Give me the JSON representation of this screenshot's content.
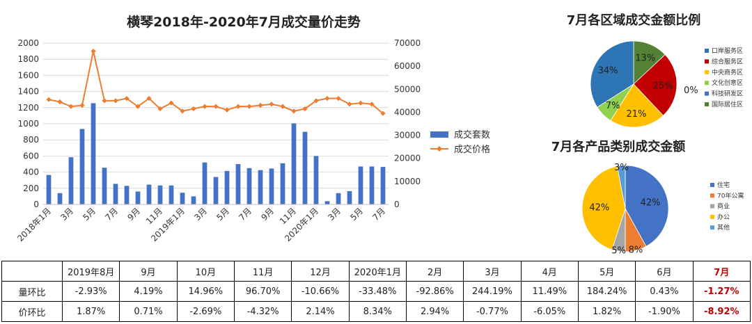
{
  "main_title": "横琴2018年-2020年7月成交量价走势",
  "region_title": "7月各区域成交金额比例",
  "product_title": "7月各产品类别成交金额",
  "chart_data": [
    {
      "type": "bar+line",
      "title": "横琴2018年-2020年7月成交量价走势",
      "categories": [
        "2018年1月",
        "2月",
        "3月",
        "4月",
        "5月",
        "6月",
        "7月",
        "8月",
        "9月",
        "10月",
        "11月",
        "12月",
        "2019年1月",
        "2月",
        "3月",
        "4月",
        "5月",
        "6月",
        "7月",
        "8月",
        "9月",
        "10月",
        "11月",
        "12月",
        "2020年1月",
        "2月",
        "3月",
        "4月",
        "5月",
        "6月",
        "7月"
      ],
      "x_tick_labels": [
        "2018年1月",
        "",
        "3月",
        "",
        "5月",
        "",
        "7月",
        "",
        "9月",
        "",
        "11月",
        "",
        "2019年1月",
        "",
        "3月",
        "",
        "5月",
        "",
        "7月",
        "",
        "9月",
        "",
        "11月",
        "",
        "2020年1月",
        "",
        "3月",
        "",
        "5月",
        "",
        "7月"
      ],
      "series": [
        {
          "name": "成交套数",
          "type": "bar",
          "axis": "left",
          "color": "#4472c4",
          "values": [
            365,
            140,
            585,
            935,
            1255,
            455,
            255,
            230,
            160,
            245,
            235,
            235,
            145,
            100,
            520,
            340,
            415,
            500,
            450,
            425,
            445,
            510,
            1005,
            900,
            600,
            40,
            140,
            165,
            470,
            470,
            465
          ]
        },
        {
          "name": "成交价格",
          "type": "line",
          "axis": "right",
          "color": "#ed7d31",
          "values": [
            45500,
            44500,
            42500,
            43000,
            66500,
            45000,
            45000,
            46000,
            42500,
            46000,
            41500,
            44000,
            40500,
            41500,
            42500,
            42500,
            41000,
            42500,
            42500,
            43000,
            43500,
            42500,
            40500,
            41500,
            45000,
            46000,
            46000,
            43500,
            44000,
            43500,
            39500
          ]
        }
      ],
      "y_left": {
        "min": 0,
        "max": 2000,
        "ticks": [
          0,
          200,
          400,
          600,
          800,
          1000,
          1200,
          1400,
          1600,
          1800,
          2000
        ]
      },
      "y_right": {
        "min": 0,
        "max": 70000,
        "ticks": [
          0,
          10000,
          20000,
          30000,
          40000,
          50000,
          60000,
          70000
        ]
      },
      "legend_position": "right"
    },
    {
      "type": "pie",
      "title": "7月各区域成交金额比例",
      "slices": [
        {
          "name": "口岸服务区",
          "value": 34,
          "label": "34%",
          "color": "#2e75b6"
        },
        {
          "name": "综合服务区",
          "value": 25,
          "label": "25%",
          "color": "#c00000"
        },
        {
          "name": "中央商务区",
          "value": 21,
          "label": "21%",
          "color": "#ffc000"
        },
        {
          "name": "文化创意区",
          "value": 7,
          "label": "7%",
          "color": "#92d050"
        },
        {
          "name": "科技研发区",
          "value": 0,
          "label": "0%",
          "color": "#4472c4"
        },
        {
          "name": "国际居住区",
          "value": 13,
          "label": "13%",
          "color": "#548235"
        }
      ],
      "draw_order": [
        "国际居住区",
        "科技研发区",
        "综合服务区",
        "中央商务区",
        "文化创意区",
        "口岸服务区"
      ],
      "legend_position": "right"
    },
    {
      "type": "pie",
      "title": "7月各产品类别成交金额",
      "slices": [
        {
          "name": "住宅",
          "value": 42,
          "label": "42%",
          "color": "#4472c4"
        },
        {
          "name": "70年公寓",
          "value": 8,
          "label": "8%",
          "color": "#ed7d31"
        },
        {
          "name": "商业",
          "value": 5,
          "label": "5%",
          "color": "#a5a5a5"
        },
        {
          "name": "办公",
          "value": 42,
          "label": "42%",
          "color": "#ffc000"
        },
        {
          "name": "其他",
          "value": 3,
          "label": "3%",
          "color": "#5b9bd5"
        }
      ],
      "legend_position": "right"
    }
  ],
  "table": {
    "header": [
      "",
      "2019年8月",
      "9月",
      "10月",
      "11月",
      "12月",
      "2020年1月",
      "2月",
      "3月",
      "4月",
      "5月",
      "6月",
      "7月"
    ],
    "rows": [
      {
        "label": "量环比",
        "values": [
          "-2.93%",
          "4.19%",
          "14.96%",
          "96.70%",
          "-10.66%",
          "-33.48%",
          "-92.86%",
          "244.19%",
          "11.49%",
          "184.24%",
          "0.43%",
          "-1.27%"
        ]
      },
      {
        "label": "价环比",
        "values": [
          "1.87%",
          "0.71%",
          "-2.69%",
          "-4.32%",
          "2.14%",
          "8.34%",
          "2.94%",
          "-0.77%",
          "-6.05%",
          "1.82%",
          "-1.90%",
          "-8.92%"
        ]
      }
    ],
    "highlight_color": "#c00000"
  }
}
